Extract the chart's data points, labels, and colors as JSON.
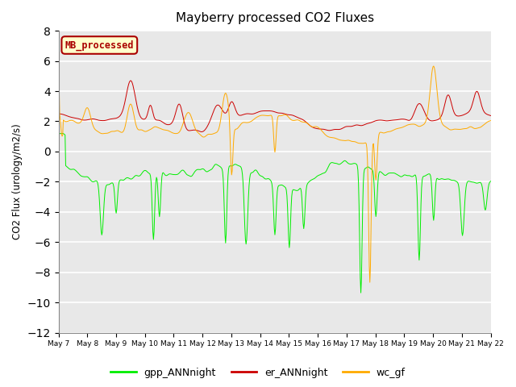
{
  "title": "Mayberry processed CO2 Fluxes",
  "ylabel": "CO2 Flux (urology/m2/s)",
  "ylim": [
    -12,
    8
  ],
  "yticks": [
    -12,
    -10,
    -8,
    -6,
    -4,
    -2,
    0,
    2,
    4,
    6,
    8
  ],
  "bg_color": "#e8e8e8",
  "fig_bg_color": "#ffffff",
  "legend_label": "MB_processed",
  "legend_box_facecolor": "#ffffcc",
  "legend_box_edgecolor": "#aa0000",
  "gpp_color": "#00ee00",
  "er_color": "#cc0000",
  "wc_color": "#ffaa00",
  "gpp_label": "gpp_ANNnight",
  "er_label": "er_ANNnight",
  "wc_label": "wc_gf",
  "x_start": 7,
  "x_end": 22,
  "xtick_days": [
    7,
    8,
    9,
    10,
    11,
    12,
    13,
    14,
    15,
    16,
    17,
    18,
    19,
    20,
    21,
    22
  ]
}
